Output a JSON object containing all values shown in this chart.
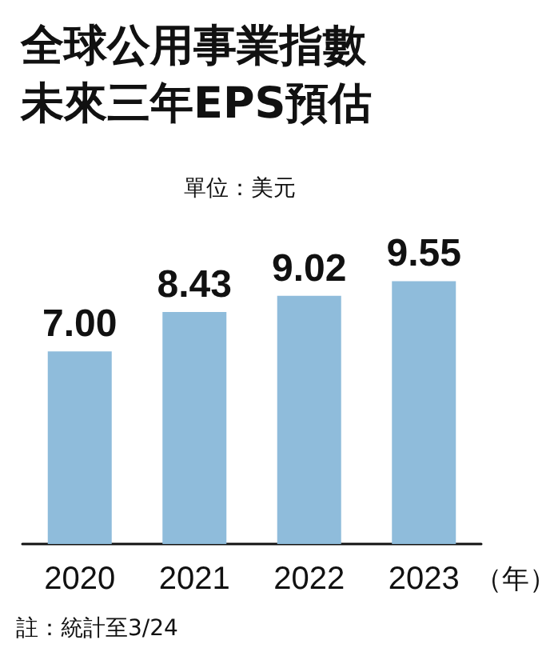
{
  "chart_data": {
    "type": "bar",
    "title": "全球公用事業指數未來三年EPS預估",
    "subtitle": "單位：美元",
    "xlabel": "（年）",
    "categories": [
      "2020",
      "2021",
      "2022",
      "2023"
    ],
    "values": [
      7.0,
      8.43,
      9.02,
      9.55
    ],
    "value_labels": [
      "7.00",
      "8.43",
      "9.02",
      "9.55"
    ],
    "color": "#8fbcdb",
    "grid": false,
    "annotations": [
      "註：統計至3/24"
    ]
  }
}
